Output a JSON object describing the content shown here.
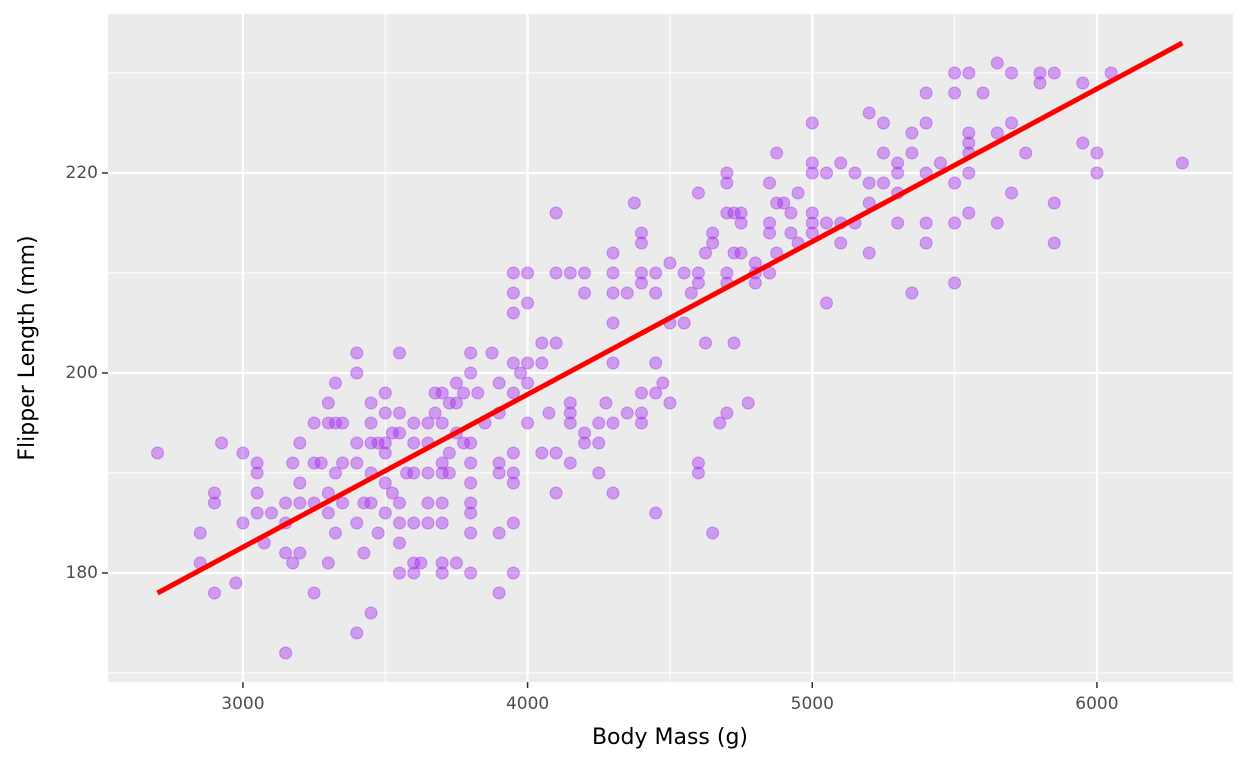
{
  "chart_data": {
    "type": "scatter",
    "x_label": "Body Mass (g)",
    "y_label": "Flipper Length (mm)",
    "xlim": [
      2526,
      6478
    ],
    "ylim": [
      169.1,
      235.9
    ],
    "xticks": [
      3000,
      4000,
      5000,
      6000
    ],
    "yticks": [
      180,
      200,
      220
    ],
    "grid": true,
    "color": "#a020f0",
    "x": [
      2700,
      2850,
      2850,
      2900,
      2900,
      2900,
      2925,
      2975,
      3000,
      3000,
      3050,
      3050,
      3050,
      3050,
      3075,
      3100,
      3150,
      3150,
      3150,
      3150,
      3175,
      3175,
      3200,
      3200,
      3200,
      3200,
      3250,
      3250,
      3250,
      3250,
      3275,
      3300,
      3300,
      3300,
      3300,
      3300,
      3325,
      3325,
      3325,
      3325,
      3350,
      3350,
      3350,
      3400,
      3400,
      3400,
      3400,
      3400,
      3400,
      3425,
      3425,
      3450,
      3450,
      3450,
      3450,
      3450,
      3450,
      3475,
      3475,
      3500,
      3500,
      3500,
      3500,
      3500,
      3500,
      3525,
      3525,
      3550,
      3550,
      3550,
      3550,
      3550,
      3550,
      3550,
      3575,
      3600,
      3600,
      3600,
      3600,
      3600,
      3600,
      3625,
      3650,
      3650,
      3650,
      3650,
      3650,
      3675,
      3675,
      3700,
      3700,
      3700,
      3700,
      3700,
      3700,
      3700,
      3700,
      3725,
      3725,
      3725,
      3750,
      3750,
      3750,
      3750,
      3775,
      3775,
      3800,
      3800,
      3800,
      3800,
      3800,
      3800,
      3800,
      3800,
      3800,
      3825,
      3850,
      3875,
      3900,
      3900,
      3900,
      3900,
      3900,
      3900,
      3950,
      3950,
      3950,
      3950,
      3950,
      3950,
      3950,
      3950,
      3950,
      3950,
      3975,
      4000,
      4000,
      4000,
      4000,
      4000,
      4050,
      4050,
      4050,
      4075,
      4100,
      4100,
      4100,
      4100,
      4100,
      4150,
      4150,
      4150,
      4150,
      4150,
      4200,
      4200,
      4200,
      4200,
      4250,
      4250,
      4250,
      4275,
      4300,
      4300,
      4300,
      4300,
      4300,
      4300,
      4300,
      4350,
      4350,
      4375,
      4400,
      4400,
      4400,
      4400,
      4400,
      4400,
      4400,
      4450,
      4450,
      4450,
      4450,
      4450,
      4475,
      4500,
      4500,
      4500,
      4550,
      4550,
      4575,
      4600,
      4600,
      4600,
      4600,
      4600,
      4625,
      4625,
      4650,
      4650,
      4650,
      4675,
      4700,
      4700,
      4700,
      4700,
      4700,
      4700,
      4725,
      4725,
      4725,
      4750,
      4750,
      4750,
      4775,
      4800,
      4800,
      4800,
      4850,
      4850,
      4850,
      4850,
      4875,
      4875,
      4875,
      4900,
      4925,
      4925,
      4950,
      4950,
      5000,
      5000,
      5000,
      5000,
      5000,
      5000,
      5050,
      5050,
      5050,
      5100,
      5100,
      5100,
      5150,
      5150,
      5200,
      5200,
      5200,
      5200,
      5250,
      5250,
      5250,
      5300,
      5300,
      5300,
      5300,
      5350,
      5350,
      5350,
      5400,
      5400,
      5400,
      5400,
      5400,
      5450,
      5500,
      5500,
      5500,
      5500,
      5500,
      5550,
      5550,
      5550,
      5550,
      5550,
      5550,
      5600,
      5650,
      5650,
      5650,
      5700,
      5700,
      5700,
      5750,
      5800,
      5800,
      5850,
      5850,
      5850,
      5950,
      5950,
      6000,
      6000,
      6050,
      6300
    ],
    "values": [
      192,
      184,
      181,
      188,
      187,
      178,
      193,
      179,
      192,
      185,
      191,
      190,
      188,
      186,
      183,
      186,
      187,
      185,
      182,
      172,
      191,
      181,
      193,
      189,
      187,
      182,
      195,
      191,
      187,
      178,
      191,
      197,
      195,
      188,
      186,
      181,
      199,
      195,
      190,
      184,
      195,
      191,
      187,
      202,
      200,
      193,
      191,
      185,
      174,
      187,
      182,
      197,
      195,
      193,
      190,
      187,
      176,
      193,
      184,
      198,
      196,
      193,
      192,
      189,
      186,
      188,
      194,
      202,
      196,
      194,
      187,
      185,
      183,
      180,
      190,
      195,
      193,
      190,
      185,
      181,
      180,
      181,
      195,
      193,
      190,
      187,
      185,
      196,
      198,
      198,
      195,
      191,
      190,
      187,
      185,
      181,
      180,
      197,
      192,
      190,
      199,
      197,
      194,
      181,
      198,
      193,
      202,
      200,
      193,
      191,
      189,
      187,
      186,
      184,
      180,
      198,
      195,
      202,
      199,
      196,
      191,
      190,
      184,
      178,
      210,
      208,
      206,
      201,
      198,
      192,
      190,
      189,
      185,
      180,
      200,
      210,
      207,
      201,
      199,
      195,
      203,
      201,
      192,
      196,
      216,
      210,
      203,
      192,
      188,
      210,
      197,
      196,
      195,
      191,
      210,
      208,
      194,
      193,
      195,
      193,
      190,
      197,
      212,
      210,
      208,
      205,
      201,
      195,
      188,
      208,
      196,
      217,
      214,
      213,
      210,
      209,
      198,
      196,
      195,
      210,
      208,
      201,
      198,
      186,
      199,
      211,
      205,
      197,
      210,
      205,
      208,
      218,
      210,
      209,
      191,
      190,
      212,
      203,
      214,
      213,
      184,
      195,
      220,
      219,
      216,
      210,
      209,
      196,
      216,
      212,
      203,
      216,
      215,
      212,
      197,
      211,
      210,
      209,
      219,
      215,
      214,
      210,
      222,
      217,
      212,
      217,
      216,
      214,
      218,
      213,
      225,
      221,
      220,
      216,
      215,
      214,
      220,
      215,
      207,
      221,
      215,
      213,
      220,
      215,
      226,
      219,
      217,
      212,
      225,
      222,
      219,
      221,
      220,
      218,
      215,
      224,
      222,
      208,
      228,
      225,
      220,
      215,
      213,
      221,
      230,
      228,
      219,
      215,
      209,
      230,
      224,
      223,
      222,
      220,
      216,
      228,
      231,
      224,
      215,
      230,
      225,
      218,
      222,
      230,
      229,
      230,
      217,
      213,
      229,
      223,
      222,
      220,
      230,
      221
    ],
    "trend_line": {
      "x": [
        2700,
        6300
      ],
      "y": [
        178,
        233
      ],
      "color": "#ff0000"
    }
  }
}
